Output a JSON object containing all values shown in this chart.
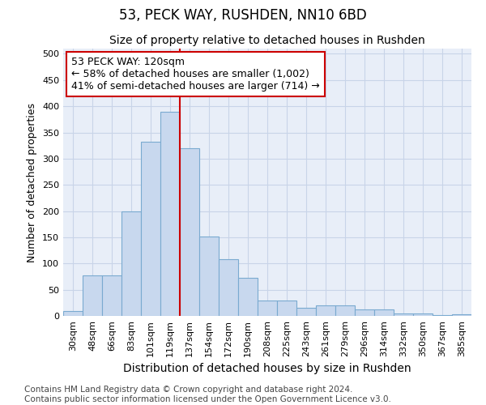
{
  "title": "53, PECK WAY, RUSHDEN, NN10 6BD",
  "subtitle": "Size of property relative to detached houses in Rushden",
  "xlabel": "Distribution of detached houses by size in Rushden",
  "ylabel": "Number of detached properties",
  "bar_labels": [
    "30sqm",
    "48sqm",
    "66sqm",
    "83sqm",
    "101sqm",
    "119sqm",
    "137sqm",
    "154sqm",
    "172sqm",
    "190sqm",
    "208sqm",
    "225sqm",
    "243sqm",
    "261sqm",
    "279sqm",
    "296sqm",
    "314sqm",
    "332sqm",
    "350sqm",
    "367sqm",
    "385sqm"
  ],
  "bar_values": [
    10,
    78,
    78,
    200,
    333,
    390,
    320,
    152,
    108,
    73,
    30,
    30,
    15,
    20,
    20,
    12,
    12,
    5,
    5,
    2,
    3
  ],
  "bar_color": "#c8d8ee",
  "bar_edgecolor": "#7aaad0",
  "vline_label_index": 5,
  "annotation_text": "53 PECK WAY: 120sqm\n← 58% of detached houses are smaller (1,002)\n41% of semi-detached houses are larger (714) →",
  "annotation_box_color": "#ffffff",
  "annotation_box_edgecolor": "#cc0000",
  "vline_color": "#cc0000",
  "ylim": [
    0,
    510
  ],
  "yticks": [
    0,
    50,
    100,
    150,
    200,
    250,
    300,
    350,
    400,
    450,
    500
  ],
  "grid_color": "#c8d4e8",
  "bg_color": "#e8eef8",
  "footnote": "Contains HM Land Registry data © Crown copyright and database right 2024.\nContains public sector information licensed under the Open Government Licence v3.0.",
  "title_fontsize": 12,
  "subtitle_fontsize": 10,
  "xlabel_fontsize": 10,
  "ylabel_fontsize": 9,
  "tick_fontsize": 8,
  "annotation_fontsize": 9,
  "footnote_fontsize": 7.5
}
